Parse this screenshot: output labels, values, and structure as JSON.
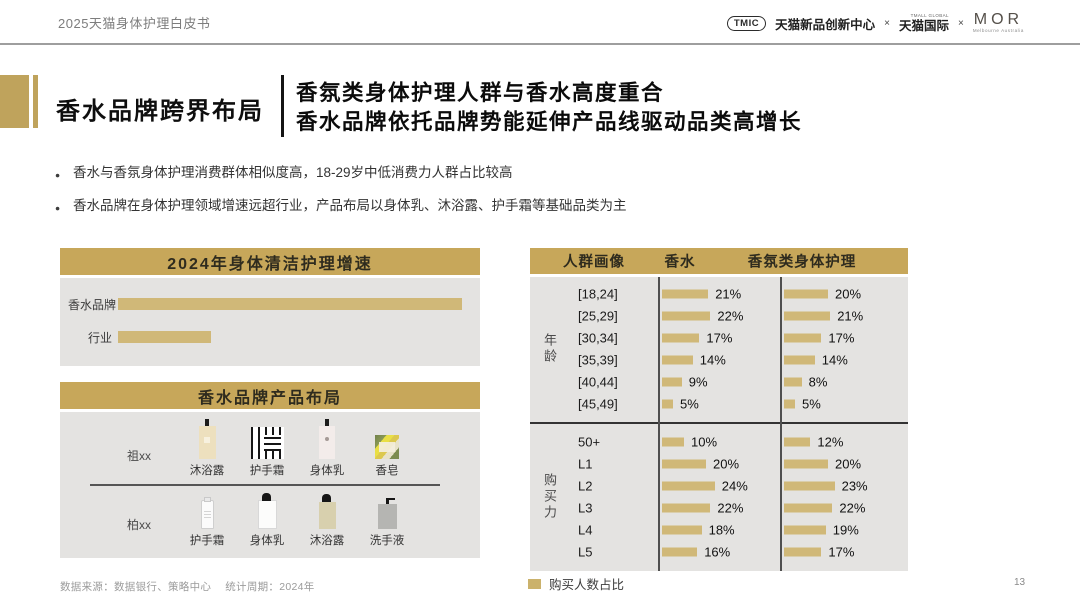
{
  "header": {
    "doc_title": "2025天猫身体护理白皮书",
    "logos": {
      "tmic_text": "TMIC",
      "tmic_name": "天猫新品创新中心",
      "separator1": "×",
      "tmall_global_sub": "TMALL GLOBAL",
      "tmall_global": "天猫国际",
      "separator2": "×",
      "mor": "MOR",
      "mor_sub": "Melbourne Australia"
    }
  },
  "title_block": {
    "section_label": "香水品牌跨界布局",
    "headline_line1": "香氛类身体护理人群与香水高度重合",
    "headline_line2": "香水品牌依托品牌势能延伸产品线驱动品类高增长"
  },
  "bullets": [
    "香水与香氛身体护理消费群体相似度高，18-29岁中低消费力人群占比较高",
    "香水品牌在身体护理领域增速远超行业，产品布局以身体乳、沐浴露、护手霜等基础品类为主"
  ],
  "growth_chart": {
    "title": "2024年身体清洁护理增速",
    "bars": [
      {
        "label": "香水品牌",
        "relative_value": 100
      },
      {
        "label": "行业",
        "relative_value": 27
      }
    ]
  },
  "product_layout": {
    "title": "香水品牌产品布局",
    "rows": [
      {
        "brand": "祖xx",
        "products": [
          {
            "name": "沐浴露",
            "shape": "bottle-beige"
          },
          {
            "name": "护手霜",
            "shape": "tubes-pattern"
          },
          {
            "name": "身体乳",
            "shape": "bottle-white-pump"
          },
          {
            "name": "香皂",
            "shape": "soap-box"
          }
        ]
      },
      {
        "brand": "柏xx",
        "products": [
          {
            "name": "护手霜",
            "shape": "tube-white"
          },
          {
            "name": "身体乳",
            "shape": "bottle-white-cap"
          },
          {
            "name": "沐浴露",
            "shape": "bottle-khaki-cap"
          },
          {
            "name": "洗手液",
            "shape": "bottle-gray-pump"
          }
        ]
      }
    ]
  },
  "audience_table": {
    "headers": {
      "profile": "人群画像",
      "perfume": "香水",
      "body_care": "香氛类身体护理"
    },
    "groups": [
      {
        "label": "年龄",
        "rows": [
          {
            "category": "[18,24]",
            "perfume": 21,
            "body_care": 20
          },
          {
            "category": "[25,29]",
            "perfume": 22,
            "body_care": 21
          },
          {
            "category": "[30,34]",
            "perfume": 17,
            "body_care": 17
          },
          {
            "category": "[35,39]",
            "perfume": 14,
            "body_care": 14
          },
          {
            "category": "[40,44]",
            "perfume": 9,
            "body_care": 8
          },
          {
            "category": "[45,49]",
            "perfume": 5,
            "body_care": 5
          }
        ]
      },
      {
        "label": "购买力",
        "rows": [
          {
            "category": "50+",
            "perfume": 10,
            "body_care": 12
          },
          {
            "category": "L1",
            "perfume": 20,
            "body_care": 20
          },
          {
            "category": "L2",
            "perfume": 24,
            "body_care": 23
          },
          {
            "category": "L3",
            "perfume": 22,
            "body_care": 22
          },
          {
            "category": "L4",
            "perfume": 18,
            "body_care": 19
          },
          {
            "category": "L5",
            "perfume": 16,
            "body_care": 17
          }
        ]
      }
    ],
    "legend_label": "购买人数占比"
  },
  "footer": {
    "source": "数据来源：数据银行、策略中心　 统计周期：2024年",
    "page_number": "13"
  },
  "colors": {
    "gold_header": "#C7A75A",
    "gold_bar": "#D0B878",
    "gold_accent": "#BFA35C",
    "panel_bg": "#E4E3E1",
    "legend_swatch": "#CBB26C"
  },
  "chart_data": [
    {
      "type": "bar",
      "title": "2024年身体清洁护理增速",
      "orientation": "horizontal",
      "categories": [
        "香水品牌",
        "行业"
      ],
      "values_relative": [
        100,
        27
      ],
      "value_labels_shown": false,
      "bar_color": "#D0B878"
    },
    {
      "type": "bar",
      "title": "人群画像",
      "orientation": "horizontal",
      "categories": [
        "[18,24]",
        "[25,29]",
        "[30,34]",
        "[35,39]",
        "[40,44]",
        "[45,49]",
        "50+",
        "L1",
        "L2",
        "L3",
        "L4",
        "L5"
      ],
      "category_groups": [
        {
          "name": "年龄",
          "categories": [
            "[18,24]",
            "[25,29]",
            "[30,34]",
            "[35,39]",
            "[40,44]",
            "[45,49]"
          ]
        },
        {
          "name": "购买力",
          "categories": [
            "50+",
            "L1",
            "L2",
            "L3",
            "L4",
            "L5"
          ]
        }
      ],
      "series": [
        {
          "name": "香水",
          "values": [
            21,
            22,
            17,
            14,
            9,
            5,
            10,
            20,
            24,
            22,
            18,
            16
          ]
        },
        {
          "name": "香氛类身体护理",
          "values": [
            20,
            21,
            17,
            14,
            8,
            5,
            12,
            20,
            23,
            22,
            19,
            17
          ]
        }
      ],
      "unit": "%",
      "legend": [
        "购买人数占比"
      ],
      "bar_color": "#D0B878"
    }
  ]
}
